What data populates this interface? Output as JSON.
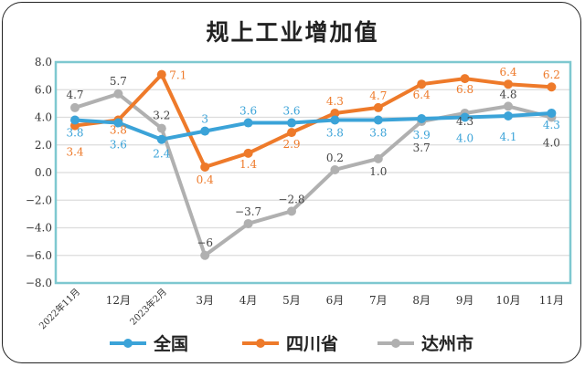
{
  "chart_data": {
    "type": "line",
    "title": "规上工业增加值",
    "categories": [
      "2022年11月",
      "12月",
      "2023年2月",
      "3月",
      "4月",
      "5月",
      "6月",
      "7月",
      "8月",
      "9月",
      "10月",
      "11月"
    ],
    "ylim": [
      -8.0,
      8.0
    ],
    "yticks": [
      "8.0",
      "6.0",
      "4.0",
      "2.0",
      "0.0",
      "−2.0",
      "−4.0",
      "−6.0",
      "−8.0"
    ],
    "grid": true,
    "legend_position": "bottom",
    "series": [
      {
        "name": "全国",
        "color": "#3ba3d8",
        "values": [
          3.8,
          3.6,
          2.4,
          3,
          3.6,
          3.6,
          3.8,
          3.8,
          3.9,
          4.0,
          4.1,
          4.3
        ],
        "labels": [
          "3.8",
          "3.6",
          "2.4",
          "3",
          "3.6",
          "3.6",
          "3.8",
          "3.8",
          "3.9",
          "4.0",
          "4.1",
          "4.3"
        ]
      },
      {
        "name": "四川省",
        "color": "#ee7a2a",
        "values": [
          3.4,
          3.8,
          7.1,
          0.4,
          1.4,
          2.9,
          4.3,
          4.7,
          6.4,
          6.8,
          6.4,
          6.2
        ],
        "labels": [
          "3.4",
          "3.8",
          "7.1",
          "0.4",
          "1.4",
          "2.9",
          "4.3",
          "4.7",
          "6.4",
          "6.8",
          "6.4",
          "6.2"
        ]
      },
      {
        "name": "达州市",
        "color": "#b0b0b0",
        "values": [
          4.7,
          5.7,
          3.2,
          -6,
          -3.7,
          -2.8,
          0.2,
          1.0,
          3.7,
          4.3,
          4.8,
          4.0
        ],
        "labels": [
          "4.7",
          "5.7",
          "3.2",
          "−6",
          "−3.7",
          "−2.8",
          "0.2",
          "1.0",
          "3.7",
          "4.3",
          "4.8",
          "4.0"
        ]
      }
    ]
  }
}
